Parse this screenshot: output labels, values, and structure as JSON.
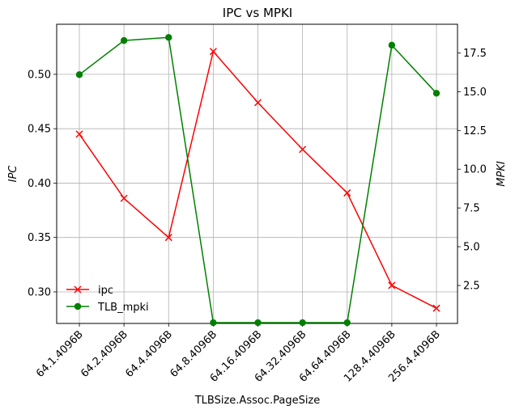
{
  "chart_data": {
    "type": "line",
    "title": "IPC vs MPKI",
    "xlabel": "TLBSize.Assoc.PageSize",
    "ylabel_left": "IPC",
    "ylabel_right": "MPKI",
    "categories": [
      "64.1.4096B",
      "64.2.4096B",
      "64.4.4096B",
      "64.8.4096B",
      "64.16.4096B",
      "64.32.4096B",
      "64.64.4096B",
      "128.4.4096B",
      "256.4.4096B"
    ],
    "series": [
      {
        "name": "ipc",
        "axis": "left",
        "color": "#ff0000",
        "marker": "x",
        "values": [
          0.445,
          0.386,
          0.35,
          0.521,
          0.474,
          0.431,
          0.391,
          0.306,
          0.285
        ]
      },
      {
        "name": "TLB_mpki",
        "axis": "right",
        "color": "#008000",
        "marker": "o",
        "values": [
          16.1,
          18.3,
          18.5,
          0.1,
          0.1,
          0.1,
          0.1,
          18.0,
          14.9
        ]
      }
    ],
    "ylim_left": [
      0.271,
      0.546
    ],
    "yticks_left": [
      "0.30",
      "0.35",
      "0.40",
      "0.45",
      "0.50"
    ],
    "ylim_right": [
      0.05,
      19.35
    ],
    "yticks_right": [
      "2.5",
      "5.0",
      "7.5",
      "10.0",
      "12.5",
      "15.0",
      "17.5"
    ],
    "grid": true,
    "legend_position": "lower-left"
  }
}
